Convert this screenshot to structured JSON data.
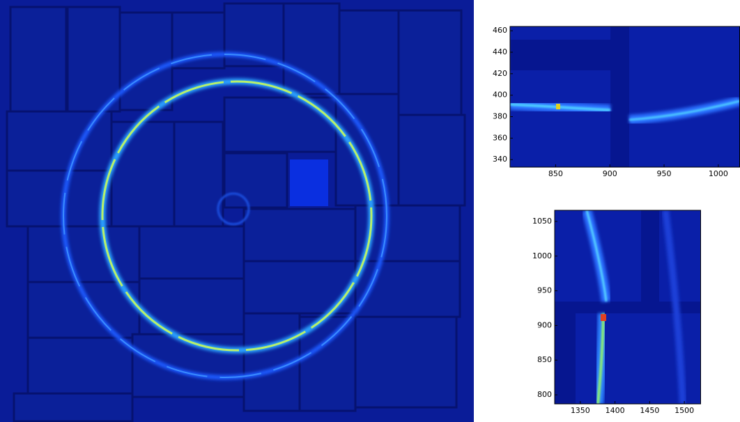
{
  "chart_data": [
    {
      "type": "image",
      "xlim": [
        808,
        1020
      ],
      "ylim": [
        333,
        464
      ],
      "xticks": [
        850,
        900,
        950,
        1000
      ],
      "yticks": [
        340,
        360,
        380,
        400,
        420,
        440,
        460
      ]
    },
    {
      "type": "image",
      "xlim": [
        1313,
        1524
      ],
      "ylim": [
        787,
        1066
      ],
      "xticks": [
        1350,
        1400,
        1450,
        1500
      ],
      "yticks": [
        800,
        850,
        900,
        950,
        1000,
        1050
      ]
    }
  ]
}
